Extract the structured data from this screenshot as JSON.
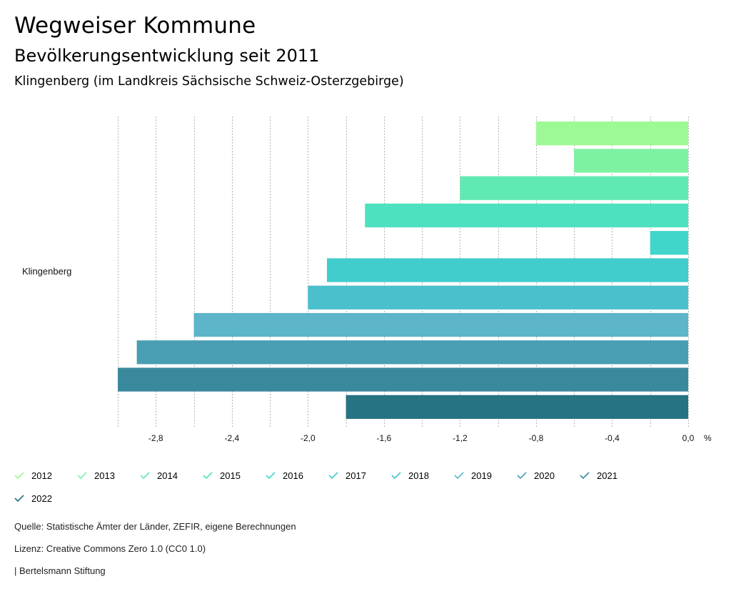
{
  "header": {
    "title": "Wegweiser Kommune",
    "subtitle": "Bevölkerungsentwicklung seit 2011",
    "region": "Klingenberg (im Landkreis Sächsische Schweiz-Osterzgebirge)"
  },
  "chart_data": {
    "type": "bar",
    "orientation": "horizontal",
    "categories": [
      "Klingenberg"
    ],
    "series": [
      {
        "name": "2012",
        "values": [
          -0.8
        ],
        "color": "#9DF993"
      },
      {
        "name": "2013",
        "values": [
          -0.6
        ],
        "color": "#7DF2A2"
      },
      {
        "name": "2014",
        "values": [
          -1.2
        ],
        "color": "#61E9B3"
      },
      {
        "name": "2015",
        "values": [
          -1.7
        ],
        "color": "#4DE1C0"
      },
      {
        "name": "2016",
        "values": [
          -0.2
        ],
        "color": "#40D6CA"
      },
      {
        "name": "2017",
        "values": [
          -1.9
        ],
        "color": "#41CCCD"
      },
      {
        "name": "2018",
        "values": [
          -2.0
        ],
        "color": "#4AC0CC"
      },
      {
        "name": "2019",
        "values": [
          -2.6
        ],
        "color": "#5CB5C8"
      },
      {
        "name": "2020",
        "values": [
          -2.9
        ],
        "color": "#4A9EB3"
      },
      {
        "name": "2021",
        "values": [
          -3.0
        ],
        "color": "#3A889B"
      },
      {
        "name": "2022",
        "values": [
          -1.8
        ],
        "color": "#267383"
      }
    ],
    "xlim": [
      -3.0,
      0.0
    ],
    "x_ticks": [
      -2.8,
      -2.4,
      -2.0,
      -1.6,
      -1.2,
      -0.8,
      -0.4,
      0.0
    ],
    "x_tick_labels": [
      "-2,8",
      "-2,4",
      "-2,0",
      "-1,6",
      "-1,2",
      "-0,8",
      "-0,4",
      "0,0"
    ],
    "x_unit": "%",
    "grid": true,
    "legend_position": "bottom",
    "title": "Bevölkerungsentwicklung seit 2011"
  },
  "footer": {
    "source": "Quelle: Statistische Ämter der Länder, ZEFIR, eigene Berechnungen",
    "license": "Lizenz: Creative Commons Zero 1.0 (CC0 1.0)",
    "publisher": "| Bertelsmann Stiftung"
  }
}
